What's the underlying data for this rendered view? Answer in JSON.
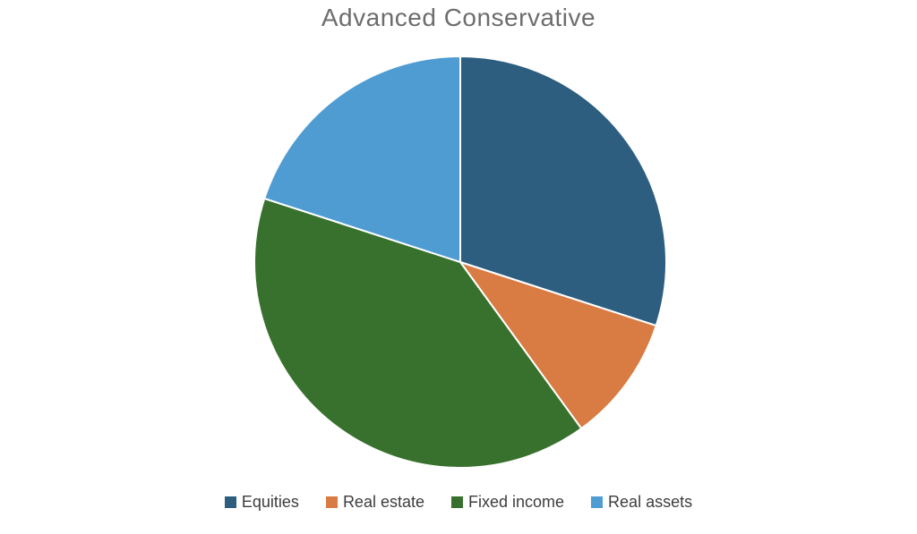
{
  "chart_data": {
    "type": "pie",
    "title": "Advanced Conservative",
    "labels": [
      "Equities",
      "Real estate",
      "Fixed income",
      "Real assets"
    ],
    "values": [
      30,
      10,
      40,
      20
    ],
    "unit": "percent",
    "colors": [
      "#2D5E80",
      "#D97C44",
      "#38712D",
      "#4F9CD3"
    ],
    "start_angle_deg": 0,
    "direction": "clockwise",
    "legend_position": "bottom",
    "title_color": "#6d6d6d",
    "legend_text_color": "#3d3d3d",
    "slice_border_color": "#ffffff",
    "background_color": "#ffffff"
  }
}
